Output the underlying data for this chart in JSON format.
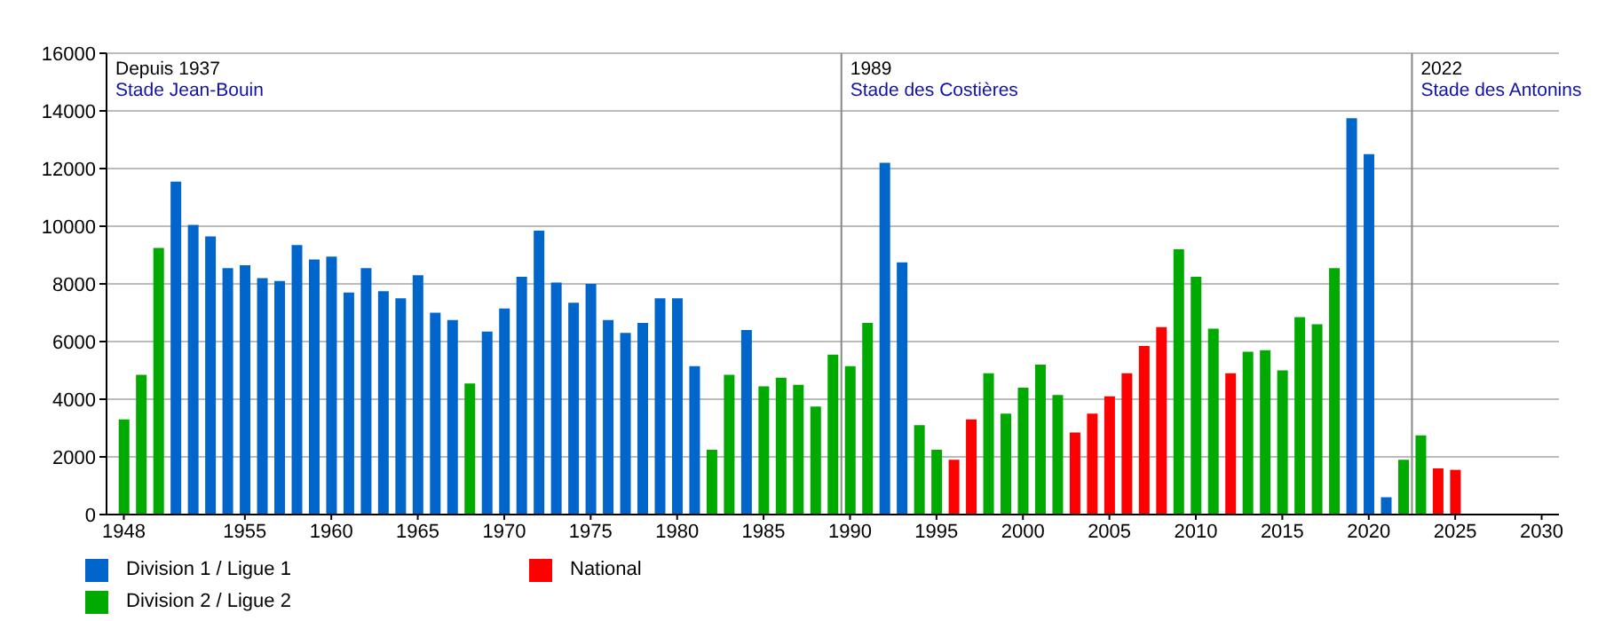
{
  "chart_data": {
    "type": "bar",
    "x": [
      1948,
      1949,
      1950,
      1951,
      1952,
      1953,
      1954,
      1955,
      1956,
      1957,
      1958,
      1959,
      1960,
      1961,
      1962,
      1963,
      1964,
      1965,
      1966,
      1967,
      1968,
      1969,
      1970,
      1971,
      1972,
      1973,
      1974,
      1975,
      1976,
      1977,
      1978,
      1979,
      1980,
      1981,
      1982,
      1983,
      1984,
      1985,
      1986,
      1987,
      1988,
      1989,
      1990,
      1991,
      1992,
      1993,
      1994,
      1995,
      1996,
      1997,
      1998,
      1999,
      2000,
      2001,
      2002,
      2003,
      2004,
      2005,
      2006,
      2007,
      2008,
      2009,
      2010,
      2011,
      2012,
      2013,
      2014,
      2015,
      2016,
      2017,
      2018,
      2019,
      2020,
      2021,
      2022,
      2023,
      2024,
      2025
    ],
    "series": [
      {
        "name": "Division 1 / Ligue 1",
        "color": "#0066cc",
        "values": [
          null,
          null,
          null,
          11550,
          10050,
          9650,
          8550,
          8650,
          8200,
          8100,
          9350,
          8850,
          8950,
          7700,
          8550,
          7750,
          7500,
          8300,
          7000,
          6750,
          null,
          6350,
          7150,
          8250,
          9850,
          8050,
          7350,
          8000,
          6750,
          6300,
          6650,
          7500,
          7500,
          5150,
          null,
          null,
          6400,
          null,
          null,
          null,
          null,
          null,
          null,
          null,
          12200,
          8750,
          null,
          null,
          null,
          null,
          null,
          null,
          null,
          null,
          null,
          null,
          null,
          null,
          null,
          null,
          null,
          null,
          null,
          null,
          null,
          null,
          null,
          null,
          null,
          null,
          null,
          13750,
          12500,
          600,
          null,
          null,
          null,
          null
        ]
      },
      {
        "name": "Division 2 / Ligue 2",
        "color": "#00aa00",
        "values": [
          3300,
          4850,
          9250,
          null,
          null,
          null,
          null,
          null,
          null,
          null,
          null,
          null,
          null,
          null,
          null,
          null,
          null,
          null,
          null,
          null,
          4550,
          null,
          null,
          null,
          null,
          null,
          null,
          null,
          null,
          null,
          null,
          null,
          null,
          null,
          2250,
          4850,
          null,
          4450,
          4750,
          4500,
          3750,
          5550,
          5150,
          6650,
          null,
          null,
          3100,
          2250,
          null,
          null,
          4900,
          3500,
          4400,
          5200,
          4150,
          null,
          null,
          null,
          null,
          null,
          null,
          9200,
          8250,
          6450,
          null,
          5650,
          5700,
          5000,
          6850,
          6600,
          8550,
          null,
          null,
          null,
          1900,
          2750,
          null,
          null
        ]
      },
      {
        "name": "National",
        "color": "#ff0000",
        "values": [
          null,
          null,
          null,
          null,
          null,
          null,
          null,
          null,
          null,
          null,
          null,
          null,
          null,
          null,
          null,
          null,
          null,
          null,
          null,
          null,
          null,
          null,
          null,
          null,
          null,
          null,
          null,
          null,
          null,
          null,
          null,
          null,
          null,
          null,
          null,
          null,
          null,
          null,
          null,
          null,
          null,
          null,
          null,
          null,
          null,
          null,
          null,
          null,
          1900,
          3300,
          null,
          null,
          null,
          null,
          null,
          2850,
          3500,
          4100,
          4900,
          5850,
          6500,
          null,
          null,
          null,
          4900,
          null,
          null,
          null,
          null,
          null,
          null,
          null,
          null,
          null,
          null,
          null,
          1600,
          1550
        ]
      }
    ],
    "xlim": [
      1947,
      2031
    ],
    "xticks": [
      1948,
      1955,
      1960,
      1965,
      1970,
      1975,
      1980,
      1985,
      1990,
      1995,
      2000,
      2005,
      2010,
      2015,
      2020,
      2025,
      2030
    ],
    "ylim": [
      0,
      16000
    ],
    "yticks": [
      0,
      2000,
      4000,
      6000,
      8000,
      10000,
      12000,
      14000,
      16000
    ],
    "grid": "y",
    "legend": "bottom",
    "ref_lines": [
      {
        "axis": "x",
        "value": 1989.5,
        "label": "1989\nStade des Costières"
      },
      {
        "axis": "x",
        "value": 2022.5,
        "label": "2022\nStade des Antonins"
      }
    ],
    "annotations": [
      "Depuis 1937",
      "Stade Jean-Bouin"
    ]
  }
}
